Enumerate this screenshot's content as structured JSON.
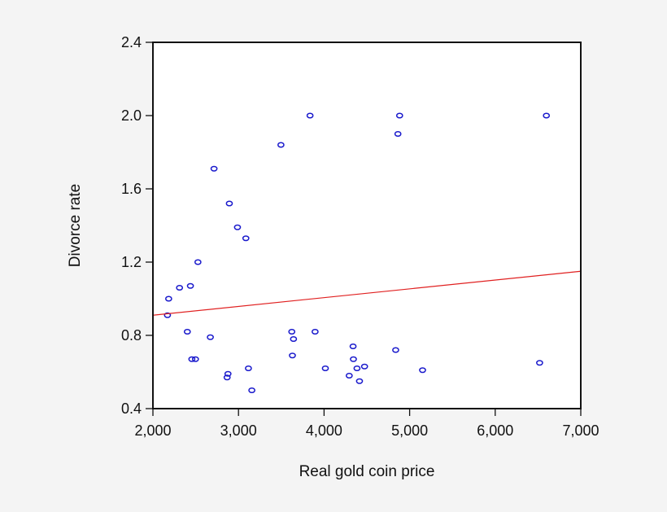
{
  "chart_data": {
    "type": "scatter",
    "title": "",
    "xlabel": "Real gold coin price",
    "ylabel": "Divorce rate",
    "xlim": [
      2000,
      7000
    ],
    "ylim": [
      0.4,
      2.4
    ],
    "xticks": [
      2000,
      3000,
      4000,
      5000,
      6000,
      7000
    ],
    "xtick_labels": [
      "2,000",
      "3,000",
      "4,000",
      "5,000",
      "6,000",
      "7,000"
    ],
    "yticks": [
      0.4,
      0.8,
      1.2,
      1.6,
      2.0,
      2.4
    ],
    "ytick_labels": [
      "0.4",
      "0.8",
      "1.2",
      "1.6",
      "2.0",
      "2.4"
    ],
    "grid": false,
    "legend": null,
    "colors": {
      "points": "#1a1acc",
      "fit_line": "#e02020",
      "frame": "#111111",
      "plot_bg": "#ffffff",
      "page_bg": "#f4f4f4"
    },
    "series": [
      {
        "name": "observations",
        "marker": "open-circle",
        "points": [
          [
            3836,
            2.0
          ],
          [
            4883,
            2.0
          ],
          [
            6598,
            2.0
          ],
          [
            4863,
            1.9
          ],
          [
            3496,
            1.84
          ],
          [
            2714,
            1.71
          ],
          [
            2893,
            1.52
          ],
          [
            2988,
            1.39
          ],
          [
            3086,
            1.33
          ],
          [
            2526,
            1.2
          ],
          [
            2311,
            1.06
          ],
          [
            2438,
            1.07
          ],
          [
            2184,
            1.0
          ],
          [
            2170,
            0.91
          ],
          [
            2402,
            0.82
          ],
          [
            2671,
            0.79
          ],
          [
            2455,
            0.67
          ],
          [
            2497,
            0.67
          ],
          [
            2877,
            0.59
          ],
          [
            2867,
            0.57
          ],
          [
            3116,
            0.62
          ],
          [
            3156,
            0.5
          ],
          [
            3623,
            0.82
          ],
          [
            3643,
            0.78
          ],
          [
            3630,
            0.69
          ],
          [
            3895,
            0.82
          ],
          [
            4015,
            0.62
          ],
          [
            4339,
            0.74
          ],
          [
            4343,
            0.67
          ],
          [
            4385,
            0.62
          ],
          [
            4473,
            0.63
          ],
          [
            4294,
            0.58
          ],
          [
            4414,
            0.55
          ],
          [
            4837,
            0.72
          ],
          [
            5151,
            0.61
          ],
          [
            6519,
            0.65
          ]
        ]
      },
      {
        "name": "linear fit",
        "type": "line",
        "points": [
          [
            2000,
            0.91
          ],
          [
            7000,
            1.15
          ]
        ]
      }
    ]
  }
}
